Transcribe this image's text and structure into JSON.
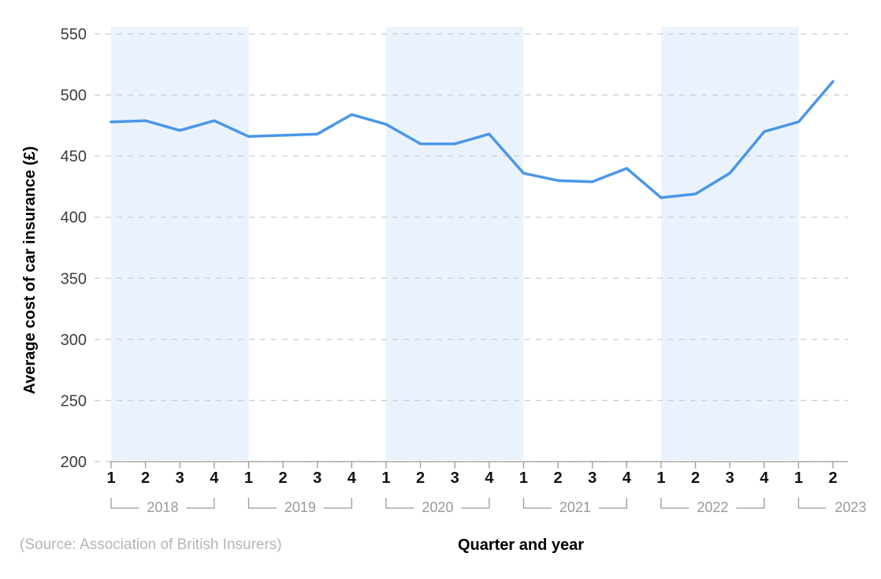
{
  "chart_data": {
    "type": "line",
    "title": "",
    "ylabel": "Average cost of car insurance (£)",
    "xlabel": "Quarter and year",
    "source": "(Source: Association of British Insurers)",
    "ylim": [
      200,
      550
    ],
    "yticks": [
      550,
      500,
      450,
      400,
      350,
      300,
      250,
      200
    ],
    "grid": "horizontal dashed",
    "legend": "none",
    "x_axis_structure": "quarters 1-4 grouped by year with bracket labels; alternate years shaded",
    "years": [
      {
        "year": "2018",
        "quarters": [
          "1",
          "2",
          "3",
          "4"
        ],
        "values": [
          478,
          479,
          471,
          479
        ],
        "shaded": true
      },
      {
        "year": "2019",
        "quarters": [
          "1",
          "2",
          "3",
          "4"
        ],
        "values": [
          466,
          467,
          468,
          484
        ],
        "shaded": false
      },
      {
        "year": "2020",
        "quarters": [
          "1",
          "2",
          "3",
          "4"
        ],
        "values": [
          476,
          460,
          460,
          468
        ],
        "shaded": true
      },
      {
        "year": "2021",
        "quarters": [
          "1",
          "2",
          "3",
          "4"
        ],
        "values": [
          436,
          430,
          429,
          440
        ],
        "shaded": false
      },
      {
        "year": "2022",
        "quarters": [
          "1",
          "2",
          "3",
          "4"
        ],
        "values": [
          416,
          419,
          436,
          470
        ],
        "shaded": true
      },
      {
        "year": "2023",
        "quarters": [
          "1",
          "2"
        ],
        "values": [
          478,
          511
        ],
        "shaded": false
      }
    ],
    "colors": {
      "line": "#4b96e8",
      "band": "#eaf3fd",
      "grid": "#cecece",
      "axis": "#999999",
      "y_tick_label": "#3d3d3d",
      "quarter_label": "#111111",
      "year_label": "#999999",
      "axis_title": "#000000",
      "source": "#b5b5b5"
    }
  }
}
